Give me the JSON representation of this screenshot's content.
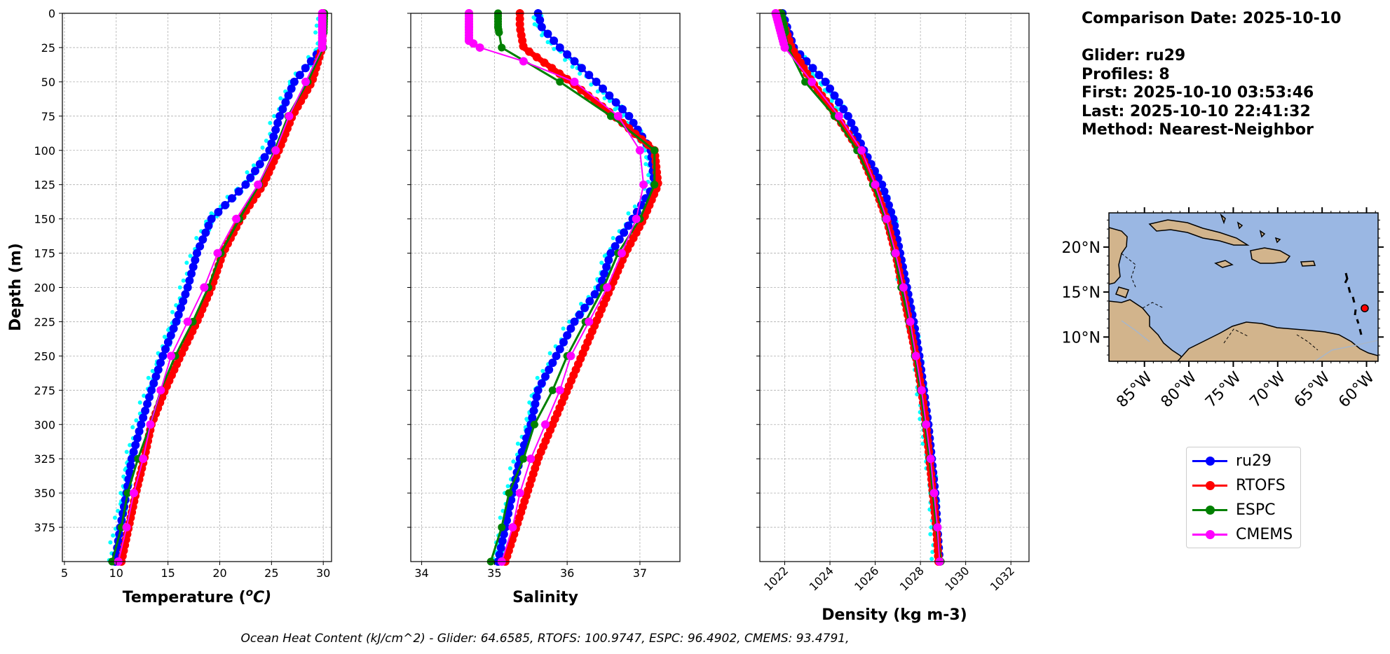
{
  "info": {
    "comparison_date": "Comparison Date: 2025-10-10",
    "glider": "Glider: ru29",
    "profiles": "Profiles: 8",
    "first": "First: 2025-10-10 03:53:46",
    "last": "Last: 2025-10-10 22:41:32",
    "method": "Method: Nearest-Neighbor"
  },
  "ohc_caption": "Ocean Heat Content (kJ/cm^2) - Glider: 64.6585,  RTOFS: 100.9747,  ESPC: 96.4902,  CMEMS: 93.4791,",
  "colors": {
    "ru29": "#0000ff",
    "RTOFS": "#ff0000",
    "ESPC": "#008000",
    "CMEMS": "#ff00ff",
    "glider_profiles": "#00ffff",
    "ocean": "#9ab7e3",
    "land": "#d2b48c"
  },
  "legend": [
    {
      "label": "ru29",
      "color": "#0000ff"
    },
    {
      "label": "RTOFS",
      "color": "#ff0000"
    },
    {
      "label": "ESPC",
      "color": "#008000"
    },
    {
      "label": "CMEMS",
      "color": "#ff00ff"
    }
  ],
  "chart_data": [
    {
      "type": "line",
      "xlabel": "Temperature ($^{o}C$)",
      "xlabel_text": "Temperature (",
      "xlabel_sup": "o",
      "xlabel_tail": "C)",
      "ylabel": "Depth (m)",
      "xlim": [
        4.8,
        30.8
      ],
      "ylim": [
        400,
        0
      ],
      "xticks": [
        5,
        10,
        15,
        20,
        25,
        30
      ],
      "yticks": [
        0,
        25,
        50,
        75,
        100,
        125,
        150,
        175,
        200,
        225,
        250,
        275,
        300,
        325,
        350,
        375
      ],
      "grid": true,
      "series": [
        {
          "name": "ru29",
          "depth": [
            0,
            25,
            50,
            75,
            100,
            125,
            150,
            175,
            200,
            225,
            250,
            275,
            300,
            325,
            350,
            375,
            400
          ],
          "values": [
            30.0,
            29.9,
            27.2,
            25.8,
            24.8,
            22.5,
            19.2,
            17.8,
            16.9,
            15.8,
            14.5,
            13.4,
            12.4,
            11.5,
            11.0,
            10.4,
            9.9
          ]
        },
        {
          "name": "RTOFS",
          "depth": [
            0,
            25,
            50,
            75,
            100,
            125,
            150,
            175,
            200,
            225,
            250,
            275,
            300,
            325,
            350,
            375,
            400
          ],
          "values": [
            30.0,
            29.9,
            28.9,
            27.0,
            25.7,
            24.2,
            22.0,
            20.3,
            19.2,
            17.8,
            16.2,
            14.7,
            13.4,
            12.7,
            11.9,
            11.2,
            10.5
          ]
        },
        {
          "name": "ESPC",
          "depth": [
            0,
            25,
            50,
            75,
            100,
            125,
            150,
            175,
            200,
            225,
            250,
            275,
            300,
            325,
            350,
            375,
            400
          ],
          "values": [
            30.1,
            30.0,
            28.5,
            26.6,
            25.3,
            23.8,
            21.9,
            20.1,
            18.9,
            17.4,
            15.7,
            14.3,
            13.3,
            12.1,
            11.1,
            10.5,
            9.6
          ]
        },
        {
          "name": "CMEMS",
          "depth": [
            0,
            25,
            50,
            75,
            100,
            125,
            150,
            175,
            200,
            225,
            250,
            275,
            300,
            325,
            350,
            375,
            400
          ],
          "values": [
            29.9,
            29.9,
            28.3,
            26.7,
            25.4,
            23.7,
            21.6,
            19.8,
            18.5,
            16.9,
            15.3,
            14.3,
            13.3,
            12.6,
            11.7,
            11.0,
            10.2
          ]
        }
      ]
    },
    {
      "type": "line",
      "xlabel": "Salinity",
      "xlim": [
        33.85,
        37.55
      ],
      "ylim": [
        400,
        0
      ],
      "xticks": [
        34,
        35,
        36,
        37
      ],
      "grid": true,
      "series": [
        {
          "name": "ru29",
          "depth": [
            0,
            10,
            25,
            50,
            75,
            100,
            125,
            150,
            175,
            200,
            225,
            250,
            275,
            300,
            325,
            350,
            375,
            400
          ],
          "values": [
            35.6,
            35.65,
            35.9,
            36.4,
            36.85,
            37.15,
            37.2,
            36.9,
            36.6,
            36.45,
            36.1,
            35.85,
            35.6,
            35.5,
            35.35,
            35.25,
            35.15,
            35.05
          ]
        },
        {
          "name": "RTOFS",
          "depth": [
            0,
            10,
            25,
            50,
            75,
            100,
            125,
            150,
            175,
            200,
            225,
            250,
            275,
            300,
            325,
            350,
            375,
            400
          ],
          "values": [
            35.35,
            35.35,
            35.4,
            36.05,
            36.65,
            37.2,
            37.25,
            37.05,
            36.8,
            36.6,
            36.4,
            36.2,
            36.0,
            35.8,
            35.6,
            35.45,
            35.3,
            35.15
          ]
        },
        {
          "name": "ESPC",
          "depth": [
            0,
            10,
            25,
            50,
            75,
            100,
            125,
            150,
            175,
            200,
            225,
            250,
            275,
            300,
            325,
            350,
            375,
            400
          ],
          "values": [
            35.05,
            35.05,
            35.1,
            35.9,
            36.6,
            37.2,
            37.2,
            37.0,
            36.7,
            36.5,
            36.25,
            36.0,
            35.8,
            35.55,
            35.4,
            35.2,
            35.1,
            34.95
          ]
        },
        {
          "name": "CMEMS",
          "depth": [
            0,
            10,
            20,
            25,
            35,
            50,
            75,
            100,
            125,
            150,
            175,
            200,
            225,
            250,
            275,
            300,
            325,
            350,
            375,
            400
          ],
          "values": [
            34.65,
            34.65,
            34.65,
            34.8,
            35.4,
            36.1,
            36.7,
            37.0,
            37.05,
            36.95,
            36.75,
            36.55,
            36.3,
            36.05,
            35.9,
            35.7,
            35.5,
            35.35,
            35.25,
            35.1
          ]
        }
      ]
    },
    {
      "type": "line",
      "xlabel": "Density (kg m-3)",
      "xlim": [
        1020.9,
        1032.8
      ],
      "ylim": [
        400,
        0
      ],
      "xticks": [
        1022,
        1024,
        1026,
        1028,
        1030,
        1032
      ],
      "grid": true,
      "series": [
        {
          "name": "ru29",
          "depth": [
            0,
            25,
            50,
            75,
            100,
            125,
            150,
            175,
            200,
            225,
            250,
            275,
            300,
            325,
            350,
            375,
            400
          ],
          "values": [
            1021.9,
            1022.4,
            1023.8,
            1024.8,
            1025.5,
            1026.3,
            1026.8,
            1027.1,
            1027.4,
            1027.7,
            1027.95,
            1028.15,
            1028.35,
            1028.5,
            1028.65,
            1028.75,
            1028.85
          ]
        },
        {
          "name": "RTOFS",
          "depth": [
            0,
            25,
            50,
            75,
            100,
            125,
            150,
            175,
            200,
            225,
            250,
            275,
            300,
            325,
            350,
            375,
            400
          ],
          "values": [
            1021.8,
            1022.3,
            1023.2,
            1024.3,
            1025.3,
            1025.95,
            1026.5,
            1026.9,
            1027.2,
            1027.5,
            1027.8,
            1028.05,
            1028.25,
            1028.4,
            1028.55,
            1028.7,
            1028.8
          ]
        },
        {
          "name": "ESPC",
          "depth": [
            0,
            25,
            50,
            75,
            100,
            125,
            150,
            175,
            200,
            225,
            250,
            275,
            300,
            325,
            350,
            375,
            400
          ],
          "values": [
            1021.85,
            1022.15,
            1022.9,
            1024.2,
            1025.2,
            1025.9,
            1026.45,
            1026.85,
            1027.15,
            1027.5,
            1027.75,
            1028.0,
            1028.2,
            1028.4,
            1028.55,
            1028.7,
            1028.9
          ]
        },
        {
          "name": "CMEMS",
          "depth": [
            0,
            25,
            50,
            75,
            100,
            125,
            150,
            175,
            200,
            225,
            250,
            275,
            300,
            325,
            350,
            375,
            400
          ],
          "values": [
            1021.6,
            1022.0,
            1023.2,
            1024.4,
            1025.4,
            1026.0,
            1026.5,
            1026.9,
            1027.25,
            1027.55,
            1027.8,
            1028.05,
            1028.25,
            1028.45,
            1028.6,
            1028.75,
            1028.85
          ]
        }
      ]
    }
  ],
  "map": {
    "lon_labels": [
      "85°W",
      "80°W",
      "75°W",
      "70°W",
      "65°W",
      "60°W"
    ],
    "lat_labels": [
      "20°N",
      "15°N",
      "10°N"
    ],
    "lon_values": [
      -85,
      -80,
      -75,
      -70,
      -65,
      -60
    ],
    "lat_values": [
      20,
      15,
      10
    ],
    "extent": {
      "lon": [
        -89,
        -58.7
      ],
      "lat": [
        7.3,
        23.8
      ]
    },
    "glider_position": {
      "lon": -60.2,
      "lat": 13.2
    }
  }
}
